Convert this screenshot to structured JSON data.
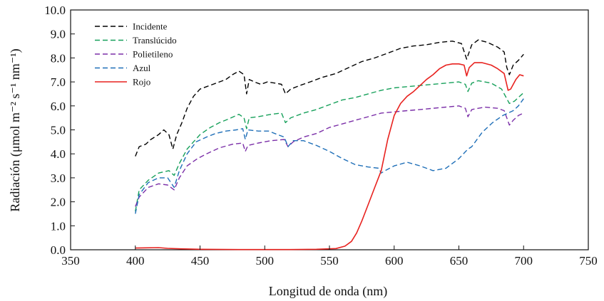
{
  "chart_data": {
    "type": "line",
    "xlabel": "Longitud de onda (nm)",
    "ylabel": "Radiación (μmol m⁻² s⁻¹ nm⁻¹)",
    "xlim": [
      350,
      750
    ],
    "ylim": [
      0,
      10
    ],
    "xticks": [
      "350",
      "400",
      "450",
      "500",
      "550",
      "600",
      "650",
      "700",
      "750"
    ],
    "yticks": [
      "0.0",
      "1.0",
      "2.0",
      "3.0",
      "4.0",
      "5.0",
      "6.0",
      "7.0",
      "8.0",
      "9.0",
      "10.0"
    ],
    "grid": false,
    "legend_position": "top-left",
    "series": [
      {
        "name": "Incidente",
        "color": "#000000",
        "dash": "dashed",
        "points": [
          [
            400,
            3.9
          ],
          [
            403,
            4.3
          ],
          [
            408,
            4.4
          ],
          [
            412,
            4.6
          ],
          [
            418,
            4.8
          ],
          [
            422,
            5.0
          ],
          [
            426,
            4.8
          ],
          [
            429,
            4.2
          ],
          [
            432,
            4.8
          ],
          [
            436,
            5.3
          ],
          [
            440,
            5.9
          ],
          [
            445,
            6.4
          ],
          [
            450,
            6.7
          ],
          [
            455,
            6.8
          ],
          [
            460,
            6.9
          ],
          [
            465,
            7.0
          ],
          [
            470,
            7.1
          ],
          [
            475,
            7.3
          ],
          [
            480,
            7.45
          ],
          [
            484,
            7.3
          ],
          [
            486,
            6.5
          ],
          [
            488,
            7.1
          ],
          [
            492,
            7.0
          ],
          [
            497,
            6.9
          ],
          [
            502,
            7.0
          ],
          [
            508,
            6.95
          ],
          [
            513,
            6.9
          ],
          [
            516,
            6.5
          ],
          [
            520,
            6.7
          ],
          [
            527,
            6.85
          ],
          [
            535,
            7.0
          ],
          [
            545,
            7.2
          ],
          [
            555,
            7.35
          ],
          [
            565,
            7.6
          ],
          [
            575,
            7.85
          ],
          [
            585,
            8.0
          ],
          [
            595,
            8.2
          ],
          [
            605,
            8.4
          ],
          [
            615,
            8.5
          ],
          [
            625,
            8.55
          ],
          [
            635,
            8.65
          ],
          [
            645,
            8.7
          ],
          [
            652,
            8.6
          ],
          [
            656,
            7.95
          ],
          [
            660,
            8.55
          ],
          [
            665,
            8.75
          ],
          [
            672,
            8.65
          ],
          [
            680,
            8.45
          ],
          [
            685,
            8.25
          ],
          [
            687,
            7.6
          ],
          [
            689,
            7.3
          ],
          [
            692,
            7.7
          ],
          [
            696,
            7.9
          ],
          [
            700,
            8.15
          ]
        ]
      },
      {
        "name": "Translúcido",
        "color": "#16a05a",
        "dash": "dashed",
        "points": [
          [
            400,
            1.6
          ],
          [
            403,
            2.5
          ],
          [
            410,
            2.9
          ],
          [
            418,
            3.2
          ],
          [
            426,
            3.3
          ],
          [
            430,
            3.1
          ],
          [
            434,
            3.6
          ],
          [
            440,
            4.2
          ],
          [
            445,
            4.5
          ],
          [
            450,
            4.8
          ],
          [
            458,
            5.1
          ],
          [
            465,
            5.3
          ],
          [
            472,
            5.45
          ],
          [
            480,
            5.65
          ],
          [
            484,
            5.5
          ],
          [
            486,
            5.05
          ],
          [
            488,
            5.5
          ],
          [
            495,
            5.55
          ],
          [
            505,
            5.65
          ],
          [
            513,
            5.7
          ],
          [
            516,
            5.3
          ],
          [
            520,
            5.5
          ],
          [
            530,
            5.7
          ],
          [
            540,
            5.85
          ],
          [
            550,
            6.05
          ],
          [
            560,
            6.25
          ],
          [
            570,
            6.35
          ],
          [
            580,
            6.5
          ],
          [
            590,
            6.65
          ],
          [
            600,
            6.75
          ],
          [
            610,
            6.8
          ],
          [
            620,
            6.85
          ],
          [
            630,
            6.9
          ],
          [
            640,
            6.95
          ],
          [
            650,
            7.0
          ],
          [
            655,
            6.9
          ],
          [
            657,
            6.6
          ],
          [
            660,
            6.95
          ],
          [
            665,
            7.05
          ],
          [
            675,
            6.95
          ],
          [
            683,
            6.7
          ],
          [
            687,
            6.3
          ],
          [
            689,
            6.1
          ],
          [
            693,
            6.2
          ],
          [
            697,
            6.4
          ],
          [
            700,
            6.55
          ]
        ]
      },
      {
        "name": "Polietileno",
        "color": "#7b2fa8",
        "dash": "dashed",
        "points": [
          [
            400,
            1.8
          ],
          [
            403,
            2.2
          ],
          [
            410,
            2.6
          ],
          [
            418,
            2.75
          ],
          [
            425,
            2.7
          ],
          [
            430,
            2.5
          ],
          [
            434,
            3.0
          ],
          [
            440,
            3.5
          ],
          [
            448,
            3.8
          ],
          [
            455,
            4.0
          ],
          [
            465,
            4.25
          ],
          [
            475,
            4.4
          ],
          [
            483,
            4.45
          ],
          [
            485,
            4.1
          ],
          [
            487,
            4.35
          ],
          [
            495,
            4.45
          ],
          [
            505,
            4.55
          ],
          [
            515,
            4.6
          ],
          [
            518,
            4.3
          ],
          [
            522,
            4.5
          ],
          [
            530,
            4.7
          ],
          [
            540,
            4.85
          ],
          [
            550,
            5.1
          ],
          [
            560,
            5.25
          ],
          [
            570,
            5.4
          ],
          [
            580,
            5.55
          ],
          [
            590,
            5.7
          ],
          [
            600,
            5.75
          ],
          [
            610,
            5.8
          ],
          [
            620,
            5.85
          ],
          [
            630,
            5.9
          ],
          [
            640,
            5.95
          ],
          [
            650,
            6.0
          ],
          [
            655,
            5.9
          ],
          [
            657,
            5.55
          ],
          [
            660,
            5.85
          ],
          [
            670,
            5.95
          ],
          [
            680,
            5.9
          ],
          [
            685,
            5.8
          ],
          [
            687,
            5.5
          ],
          [
            689,
            5.2
          ],
          [
            692,
            5.4
          ],
          [
            696,
            5.6
          ],
          [
            700,
            5.7
          ]
        ]
      },
      {
        "name": "Azul",
        "color": "#1f6fb8",
        "dash": "dashed",
        "points": [
          [
            400,
            1.5
          ],
          [
            403,
            2.3
          ],
          [
            410,
            2.8
          ],
          [
            418,
            3.0
          ],
          [
            425,
            3.0
          ],
          [
            430,
            2.6
          ],
          [
            434,
            3.3
          ],
          [
            440,
            4.0
          ],
          [
            447,
            4.5
          ],
          [
            455,
            4.7
          ],
          [
            462,
            4.85
          ],
          [
            470,
            4.95
          ],
          [
            478,
            5.0
          ],
          [
            483,
            5.05
          ],
          [
            485,
            4.6
          ],
          [
            487,
            5.0
          ],
          [
            495,
            4.95
          ],
          [
            503,
            4.95
          ],
          [
            510,
            4.8
          ],
          [
            515,
            4.7
          ],
          [
            518,
            4.3
          ],
          [
            522,
            4.55
          ],
          [
            530,
            4.55
          ],
          [
            540,
            4.35
          ],
          [
            550,
            4.1
          ],
          [
            560,
            3.8
          ],
          [
            570,
            3.55
          ],
          [
            580,
            3.45
          ],
          [
            588,
            3.4
          ],
          [
            590,
            3.2
          ],
          [
            593,
            3.3
          ],
          [
            600,
            3.5
          ],
          [
            610,
            3.65
          ],
          [
            620,
            3.5
          ],
          [
            630,
            3.3
          ],
          [
            640,
            3.4
          ],
          [
            650,
            3.8
          ],
          [
            657,
            4.2
          ],
          [
            660,
            4.3
          ],
          [
            668,
            4.9
          ],
          [
            676,
            5.3
          ],
          [
            684,
            5.6
          ],
          [
            688,
            5.7
          ],
          [
            692,
            5.8
          ],
          [
            696,
            6.0
          ],
          [
            700,
            6.3
          ]
        ]
      },
      {
        "name": "Rojo",
        "color": "#e8221f",
        "dash": "solid",
        "points": [
          [
            400,
            0.07
          ],
          [
            408,
            0.08
          ],
          [
            418,
            0.09
          ],
          [
            425,
            0.06
          ],
          [
            435,
            0.04
          ],
          [
            450,
            0.02
          ],
          [
            480,
            0.01
          ],
          [
            520,
            0.01
          ],
          [
            540,
            0.02
          ],
          [
            555,
            0.05
          ],
          [
            562,
            0.15
          ],
          [
            567,
            0.35
          ],
          [
            571,
            0.7
          ],
          [
            575,
            1.2
          ],
          [
            580,
            1.9
          ],
          [
            585,
            2.6
          ],
          [
            590,
            3.3
          ],
          [
            595,
            4.6
          ],
          [
            600,
            5.6
          ],
          [
            605,
            6.1
          ],
          [
            610,
            6.4
          ],
          [
            615,
            6.6
          ],
          [
            620,
            6.85
          ],
          [
            625,
            7.1
          ],
          [
            630,
            7.3
          ],
          [
            635,
            7.55
          ],
          [
            640,
            7.7
          ],
          [
            645,
            7.75
          ],
          [
            650,
            7.75
          ],
          [
            654,
            7.7
          ],
          [
            656,
            7.25
          ],
          [
            658,
            7.6
          ],
          [
            662,
            7.8
          ],
          [
            668,
            7.8
          ],
          [
            675,
            7.7
          ],
          [
            680,
            7.55
          ],
          [
            685,
            7.35
          ],
          [
            688,
            6.65
          ],
          [
            690,
            6.7
          ],
          [
            694,
            7.1
          ],
          [
            697,
            7.3
          ],
          [
            700,
            7.25
          ]
        ]
      }
    ]
  }
}
